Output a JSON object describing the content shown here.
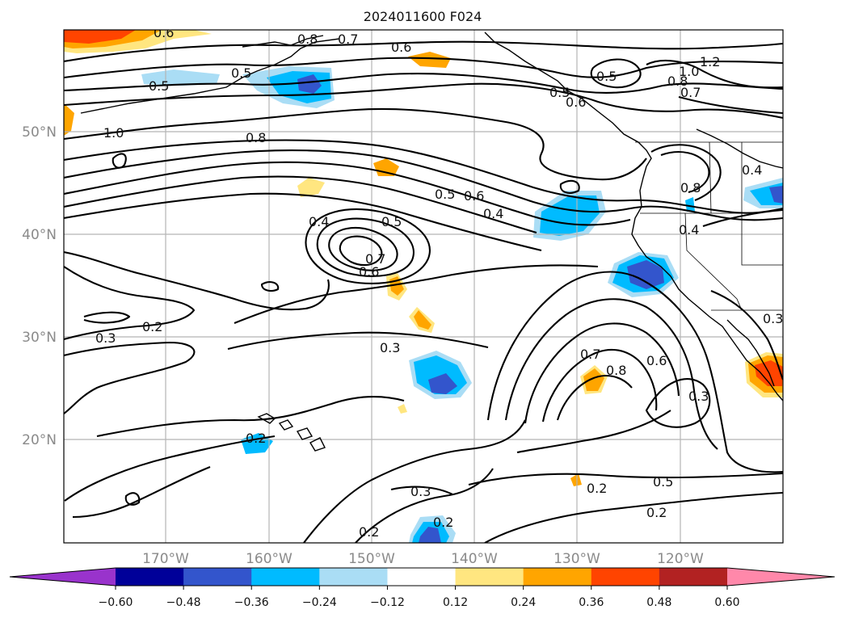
{
  "title": "2024011600 F024",
  "map": {
    "projection": "cylindrical",
    "lon_range": [
      -180,
      -110
    ],
    "lat_range": [
      10,
      60
    ],
    "gridlines": true,
    "lon_labels": [
      "170°W",
      "160°W",
      "150°W",
      "140°W",
      "130°W",
      "120°W"
    ],
    "lat_labels": [
      "50°N",
      "40°N",
      "30°N",
      "20°N"
    ],
    "contour_color": "#000000",
    "contour_labels": [
      "0.6",
      "0.8",
      "0.7",
      "0.6",
      "0.5",
      "1.2",
      "1.0",
      "0.5",
      "0.8",
      "0.7",
      "0.6",
      "0.5",
      "1.0",
      "0.8",
      "0.5",
      "0.6",
      "0.4",
      "0.4",
      "0.5",
      "0.7",
      "0.6",
      "0.4",
      "0.8",
      "0.2",
      "0.3",
      "0.3",
      "0.7",
      "0.8",
      "0.6",
      "0.3",
      "0.2",
      "0.3",
      "0.2",
      "0.2",
      "0.5",
      "0.2",
      "0.2",
      "0.3",
      "0.5",
      "0.4"
    ]
  },
  "colorbar": {
    "colors": [
      "#9933cc",
      "#000099",
      "#3355cc",
      "#00bbff",
      "#aaddf5",
      "#ffffff",
      "#ffe680",
      "#ffa500",
      "#ff4400",
      "#b22222",
      "#ff88aa"
    ],
    "tick_labels": [
      "−0.60",
      "−0.48",
      "−0.36",
      "−0.24",
      "−0.12",
      "0.12",
      "0.24",
      "0.36",
      "0.48",
      "0.60"
    ]
  }
}
